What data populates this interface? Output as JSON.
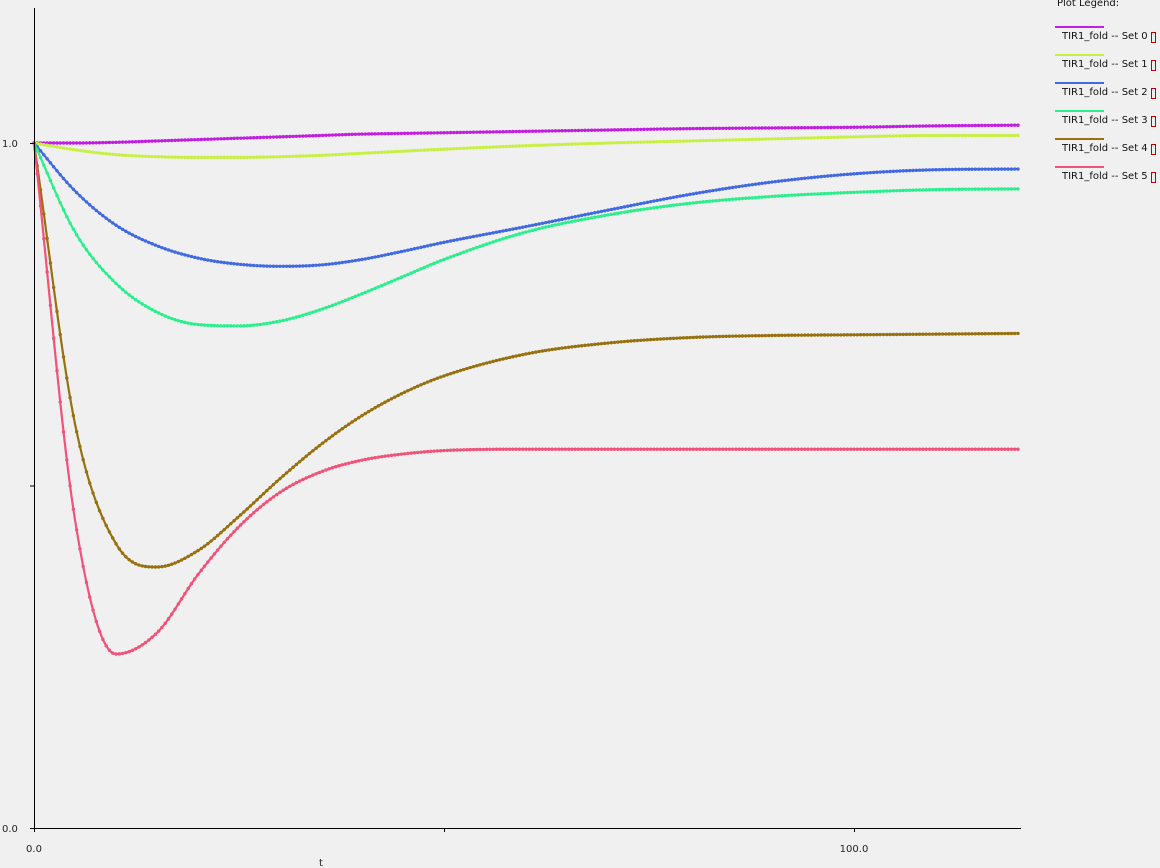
{
  "legend": {
    "title": "Plot Legend:",
    "items": [
      {
        "label": "TIR1_fold -- Set 0",
        "color": "#c21ee0"
      },
      {
        "label": "TIR1_fold -- Set 1",
        "color": "#c8f044"
      },
      {
        "label": "TIR1_fold -- Set 2",
        "color": "#4169e1"
      },
      {
        "label": "TIR1_fold -- Set 3",
        "color": "#2aef8c"
      },
      {
        "label": "TIR1_fold -- Set 4",
        "color": "#97700f"
      },
      {
        "label": "TIR1_fold -- Set 5",
        "color": "#f0527a"
      }
    ]
  },
  "chart_data": {
    "type": "line",
    "xlabel": "t",
    "ylabel": "",
    "xlim": [
      0,
      120
    ],
    "ylim": [
      0,
      1.0
    ],
    "x_ticks": [
      0,
      50,
      100
    ],
    "x_tick_labels": [
      "0.0",
      "",
      "100.0"
    ],
    "y_ticks": [
      0,
      0.5,
      1.0
    ],
    "y_tick_labels": [
      "0.0",
      "",
      "1.0"
    ],
    "grid": false,
    "legend_position": "top-right",
    "x": [
      0,
      5,
      10,
      15,
      20,
      25,
      30,
      35,
      40,
      45,
      50,
      60,
      70,
      80,
      90,
      100,
      110,
      120
    ],
    "series": [
      {
        "name": "TIR1_fold -- Set 0",
        "color": "#c21ee0",
        "values": [
          1.0,
          1.0,
          1.001,
          1.003,
          1.005,
          1.007,
          1.009,
          1.011,
          1.013,
          1.014,
          1.015,
          1.017,
          1.019,
          1.021,
          1.022,
          1.023,
          1.025,
          1.026
        ]
      },
      {
        "name": "TIR1_fold -- Set 1",
        "color": "#c8f044",
        "values": [
          1.0,
          0.99,
          0.983,
          0.98,
          0.979,
          0.979,
          0.98,
          0.982,
          0.985,
          0.988,
          0.991,
          0.996,
          1.0,
          1.003,
          1.006,
          1.009,
          1.011,
          1.011
        ]
      },
      {
        "name": "TIR1_fold -- Set 2",
        "color": "#4169e1",
        "values": [
          1.0,
          0.93,
          0.88,
          0.85,
          0.832,
          0.823,
          0.82,
          0.822,
          0.83,
          0.842,
          0.855,
          0.878,
          0.902,
          0.925,
          0.943,
          0.955,
          0.961,
          0.962
        ]
      },
      {
        "name": "TIR1_fold -- Set 3",
        "color": "#2aef8c",
        "values": [
          1.0,
          0.87,
          0.795,
          0.753,
          0.735,
          0.733,
          0.74,
          0.757,
          0.78,
          0.805,
          0.83,
          0.87,
          0.895,
          0.912,
          0.922,
          0.928,
          0.932,
          0.933
        ]
      },
      {
        "name": "TIR1_fold -- Set 4",
        "color": "#97700f",
        "values": [
          1.0,
          0.59,
          0.415,
          0.381,
          0.405,
          0.455,
          0.51,
          0.56,
          0.602,
          0.635,
          0.66,
          0.692,
          0.708,
          0.716,
          0.719,
          0.72,
          0.721,
          0.722
        ]
      },
      {
        "name": "TIR1_fold -- Set 5",
        "color": "#f0527a",
        "values": [
          1.0,
          0.45,
          0.254,
          0.285,
          0.37,
          0.44,
          0.49,
          0.52,
          0.537,
          0.546,
          0.551,
          0.553,
          0.553,
          0.553,
          0.553,
          0.553,
          0.553,
          0.553
        ]
      }
    ]
  }
}
